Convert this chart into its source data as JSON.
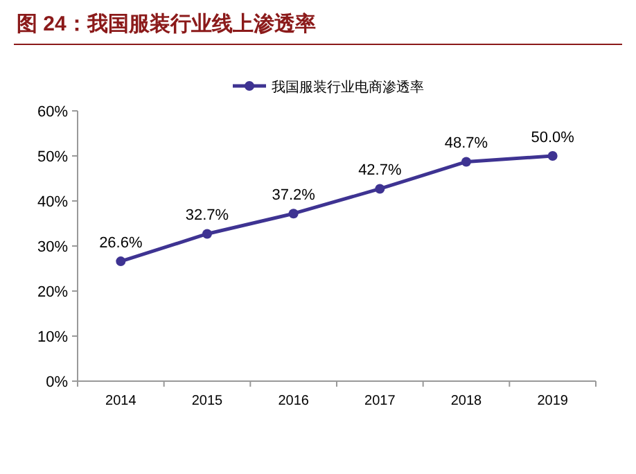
{
  "chart_data": {
    "type": "line",
    "title": "图 24：我国服装行业线上渗透率",
    "categories": [
      "2014",
      "2015",
      "2016",
      "2017",
      "2018",
      "2019"
    ],
    "series": [
      {
        "name": "我国服装行业电商渗透率",
        "color": "#3e3392",
        "values": [
          26.6,
          32.7,
          37.2,
          42.7,
          48.7,
          50.0
        ],
        "value_labels": [
          "26.6%",
          "32.7%",
          "37.2%",
          "42.7%",
          "48.7%",
          "50.0%"
        ]
      }
    ],
    "ylim": [
      0,
      60
    ],
    "yticks": [
      {
        "value": 0,
        "label": "0%"
      },
      {
        "value": 10,
        "label": "10%"
      },
      {
        "value": 20,
        "label": "20%"
      },
      {
        "value": 30,
        "label": "30%"
      },
      {
        "value": 40,
        "label": "40%"
      },
      {
        "value": 50,
        "label": "50%"
      },
      {
        "value": 60,
        "label": "60%"
      }
    ],
    "legend": "top",
    "marker": "circle",
    "line_style": "solid"
  }
}
